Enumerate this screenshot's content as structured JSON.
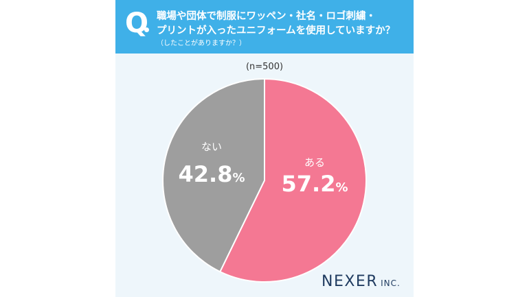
{
  "question": {
    "mark": "Q",
    "line1": "職場や団体で制服にワッペン・社名・ロゴ刺繍・",
    "line2": "プリントが入ったユニフォームを使用していますか？",
    "line3": "（したことがありますか？）"
  },
  "chart_data": {
    "type": "pie",
    "sample_label": "(n=500)",
    "slices": [
      {
        "label": "ある",
        "value": 57.2,
        "value_text": "57.2",
        "unit": "%",
        "color": "#f47893"
      },
      {
        "label": "ない",
        "value": 42.8,
        "value_text": "42.8",
        "unit": "%",
        "color": "#9e9e9e"
      }
    ]
  },
  "logo": {
    "main": "NEXER",
    "sub": "INC."
  },
  "colors": {
    "header": "#3fb0e8",
    "background": "#eef6fb",
    "slice_border": "#ffffff"
  }
}
